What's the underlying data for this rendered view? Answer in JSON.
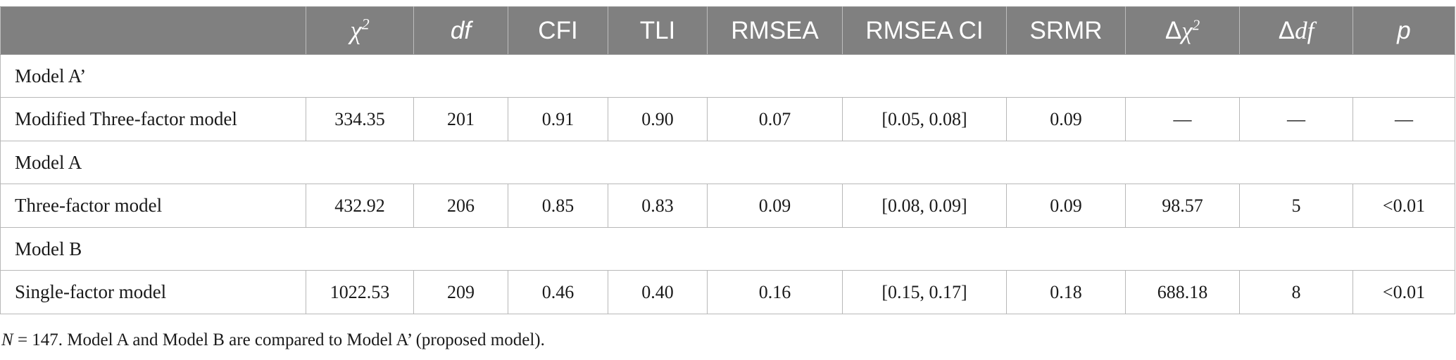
{
  "table": {
    "headers": {
      "label": "",
      "chi2": "χ",
      "chi2_sup": "2",
      "df": "df",
      "cfi": "CFI",
      "tli": "TLI",
      "rmsea": "RMSEA",
      "rmsea_ci": "RMSEA CI",
      "srmr": "SRMR",
      "delta_chi2_delta": "Δ",
      "delta_chi2_chi": "χ",
      "delta_chi2_sup": "2",
      "delta_df_delta": "Δ",
      "delta_df_df": "df",
      "p": "p"
    },
    "groups": [
      {
        "name": "Model A’",
        "row": {
          "label": "Modified Three-factor model",
          "chi2": "334.35",
          "df": "201",
          "cfi": "0.91",
          "tli": "0.90",
          "rmsea": "0.07",
          "rmsea_ci": "[0.05, 0.08]",
          "srmr": "0.09",
          "delta_chi2": "—",
          "delta_df": "—",
          "p": "—"
        }
      },
      {
        "name": "Model A",
        "row": {
          "label": "Three-factor model",
          "chi2": "432.92",
          "df": "206",
          "cfi": "0.85",
          "tli": "0.83",
          "rmsea": "0.09",
          "rmsea_ci": "[0.08, 0.09]",
          "srmr": "0.09",
          "delta_chi2": "98.57",
          "delta_df": "5",
          "p": "<0.01"
        }
      },
      {
        "name": "Model B",
        "row": {
          "label": "Single-factor model",
          "chi2": "1022.53",
          "df": "209",
          "cfi": "0.46",
          "tli": "0.40",
          "rmsea": "0.16",
          "rmsea_ci": "[0.15, 0.17]",
          "srmr": "0.18",
          "delta_chi2": "688.18",
          "delta_df": "8",
          "p": "<0.01"
        }
      }
    ]
  },
  "note": {
    "n_label": "N",
    "text": " = 147. Model A and Model B are compared to Model A’ (proposed model)."
  },
  "colors": {
    "header_bg": "#808080",
    "header_text": "#ffffff",
    "border": "#b8b8b8"
  }
}
